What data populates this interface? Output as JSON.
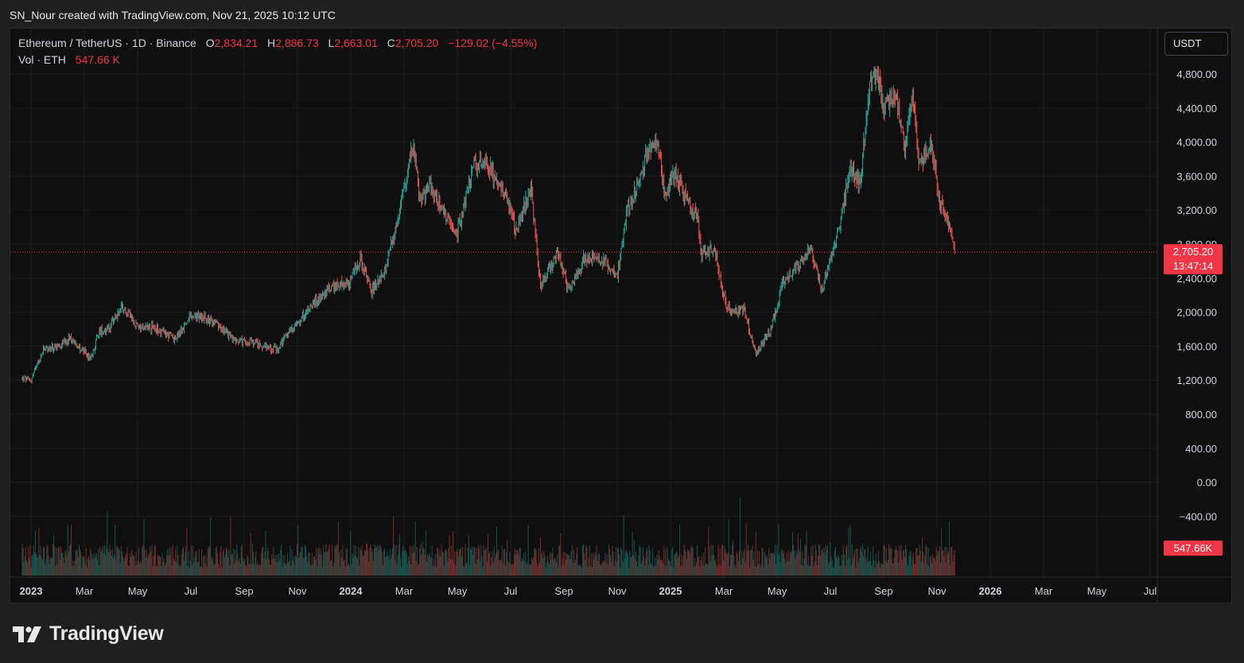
{
  "caption": "SN_Nour created with TradingView.com, Nov 21, 2025 10:12 UTC",
  "legend": {
    "symbol": "Ethereum / TetherUS · 1D · Binance",
    "o_label": "O",
    "o_value": "2,834.21",
    "h_label": "H",
    "h_value": "2,886.73",
    "l_label": "L",
    "l_value": "2,663.01",
    "c_label": "C",
    "c_value": "2,705.20",
    "change": "−129.02 (−4.55%)",
    "vol_label": "Vol · ETH",
    "vol_value": "547.66 K"
  },
  "currency_button": "USDT",
  "brand": "TradingView",
  "colors": {
    "up": "#26a69a",
    "down": "#ef5350",
    "last_price_tag": "#f23645"
  },
  "chart_data": {
    "type": "candlestick",
    "price_axis": {
      "ticks": [
        "4,800.00",
        "4,400.00",
        "4,000.00",
        "3,600.00",
        "3,200.00",
        "2,800.00",
        "2,400.00",
        "2,000.00",
        "1,600.00",
        "1,200.00",
        "800.00",
        "400.00",
        "0.00",
        "−400.00"
      ],
      "tick_values": [
        4800,
        4400,
        4000,
        3600,
        3200,
        2800,
        2400,
        2000,
        1600,
        1200,
        800,
        400,
        0,
        -400
      ]
    },
    "time_axis": {
      "labels": [
        {
          "text": "2023",
          "bold": true
        },
        {
          "text": "Mar"
        },
        {
          "text": "May"
        },
        {
          "text": "Jul"
        },
        {
          "text": "Sep"
        },
        {
          "text": "Nov"
        },
        {
          "text": "2024",
          "bold": true
        },
        {
          "text": "Mar"
        },
        {
          "text": "May"
        },
        {
          "text": "Jul"
        },
        {
          "text": "Sep"
        },
        {
          "text": "Nov"
        },
        {
          "text": "2025",
          "bold": true
        },
        {
          "text": "Mar"
        },
        {
          "text": "May"
        },
        {
          "text": "Jul"
        },
        {
          "text": "Sep"
        },
        {
          "text": "Nov"
        },
        {
          "text": "2026",
          "bold": true
        },
        {
          "text": "Mar"
        },
        {
          "text": "May"
        },
        {
          "text": "Jul"
        }
      ],
      "label_dates": [
        "2023-01",
        "2023-03",
        "2023-05",
        "2023-07",
        "2023-09",
        "2023-11",
        "2024-01",
        "2024-03",
        "2024-05",
        "2024-07",
        "2024-09",
        "2024-11",
        "2025-01",
        "2025-03",
        "2025-05",
        "2025-07",
        "2025-09",
        "2025-11",
        "2026-01",
        "2026-03",
        "2026-05",
        "2026-07"
      ]
    },
    "last_price": "2,705.20",
    "countdown": "13:47:14",
    "last_volume": "547.66K",
    "price_series": [
      {
        "date": "2022-12-22",
        "close": 1220
      },
      {
        "date": "2023-01-01",
        "close": 1200
      },
      {
        "date": "2023-01-15",
        "close": 1550
      },
      {
        "date": "2023-02-01",
        "close": 1600
      },
      {
        "date": "2023-02-15",
        "close": 1700
      },
      {
        "date": "2023-03-10",
        "close": 1450
      },
      {
        "date": "2023-03-20",
        "close": 1780
      },
      {
        "date": "2023-04-01",
        "close": 1820
      },
      {
        "date": "2023-04-15",
        "close": 2080
      },
      {
        "date": "2023-05-01",
        "close": 1850
      },
      {
        "date": "2023-05-20",
        "close": 1820
      },
      {
        "date": "2023-06-15",
        "close": 1680
      },
      {
        "date": "2023-07-01",
        "close": 1930
      },
      {
        "date": "2023-07-15",
        "close": 1950
      },
      {
        "date": "2023-08-01",
        "close": 1850
      },
      {
        "date": "2023-08-20",
        "close": 1680
      },
      {
        "date": "2023-09-15",
        "close": 1620
      },
      {
        "date": "2023-10-10",
        "close": 1560
      },
      {
        "date": "2023-10-25",
        "close": 1800
      },
      {
        "date": "2023-11-15",
        "close": 2050
      },
      {
        "date": "2023-12-10",
        "close": 2300
      },
      {
        "date": "2024-01-01",
        "close": 2350
      },
      {
        "date": "2024-01-12",
        "close": 2650
      },
      {
        "date": "2024-01-25",
        "close": 2250
      },
      {
        "date": "2024-02-10",
        "close": 2500
      },
      {
        "date": "2024-02-28",
        "close": 3300
      },
      {
        "date": "2024-03-12",
        "close": 4000
      },
      {
        "date": "2024-03-20",
        "close": 3300
      },
      {
        "date": "2024-04-01",
        "close": 3500
      },
      {
        "date": "2024-04-20",
        "close": 3100
      },
      {
        "date": "2024-05-01",
        "close": 2900
      },
      {
        "date": "2024-05-20",
        "close": 3700
      },
      {
        "date": "2024-06-01",
        "close": 3800
      },
      {
        "date": "2024-06-25",
        "close": 3400
      },
      {
        "date": "2024-07-08",
        "close": 2950
      },
      {
        "date": "2024-07-25",
        "close": 3450
      },
      {
        "date": "2024-08-05",
        "close": 2300
      },
      {
        "date": "2024-08-25",
        "close": 2700
      },
      {
        "date": "2024-09-06",
        "close": 2250
      },
      {
        "date": "2024-09-25",
        "close": 2650
      },
      {
        "date": "2024-10-15",
        "close": 2600
      },
      {
        "date": "2024-11-01",
        "close": 2450
      },
      {
        "date": "2024-11-12",
        "close": 3200
      },
      {
        "date": "2024-11-25",
        "close": 3500
      },
      {
        "date": "2024-12-05",
        "close": 3900
      },
      {
        "date": "2024-12-16",
        "close": 4000
      },
      {
        "date": "2024-12-25",
        "close": 3350
      },
      {
        "date": "2025-01-05",
        "close": 3650
      },
      {
        "date": "2025-01-20",
        "close": 3300
      },
      {
        "date": "2025-02-01",
        "close": 3100
      },
      {
        "date": "2025-02-04",
        "close": 2700
      },
      {
        "date": "2025-02-20",
        "close": 2750
      },
      {
        "date": "2025-03-01",
        "close": 2200
      },
      {
        "date": "2025-03-10",
        "close": 2000
      },
      {
        "date": "2025-03-25",
        "close": 2050
      },
      {
        "date": "2025-04-08",
        "close": 1500
      },
      {
        "date": "2025-04-25",
        "close": 1800
      },
      {
        "date": "2025-05-09",
        "close": 2350
      },
      {
        "date": "2025-05-25",
        "close": 2550
      },
      {
        "date": "2025-06-10",
        "close": 2750
      },
      {
        "date": "2025-06-22",
        "close": 2250
      },
      {
        "date": "2025-07-10",
        "close": 2900
      },
      {
        "date": "2025-07-25",
        "close": 3700
      },
      {
        "date": "2025-08-05",
        "close": 3500
      },
      {
        "date": "2025-08-15",
        "close": 4600
      },
      {
        "date": "2025-08-24",
        "close": 4800
      },
      {
        "date": "2025-09-01",
        "close": 4400
      },
      {
        "date": "2025-09-15",
        "close": 4550
      },
      {
        "date": "2025-09-25",
        "close": 3900
      },
      {
        "date": "2025-10-05",
        "close": 4550
      },
      {
        "date": "2025-10-11",
        "close": 3750
      },
      {
        "date": "2025-10-25",
        "close": 3950
      },
      {
        "date": "2025-11-04",
        "close": 3300
      },
      {
        "date": "2025-11-13",
        "close": 3100
      },
      {
        "date": "2025-11-21",
        "close": 2705
      }
    ]
  }
}
